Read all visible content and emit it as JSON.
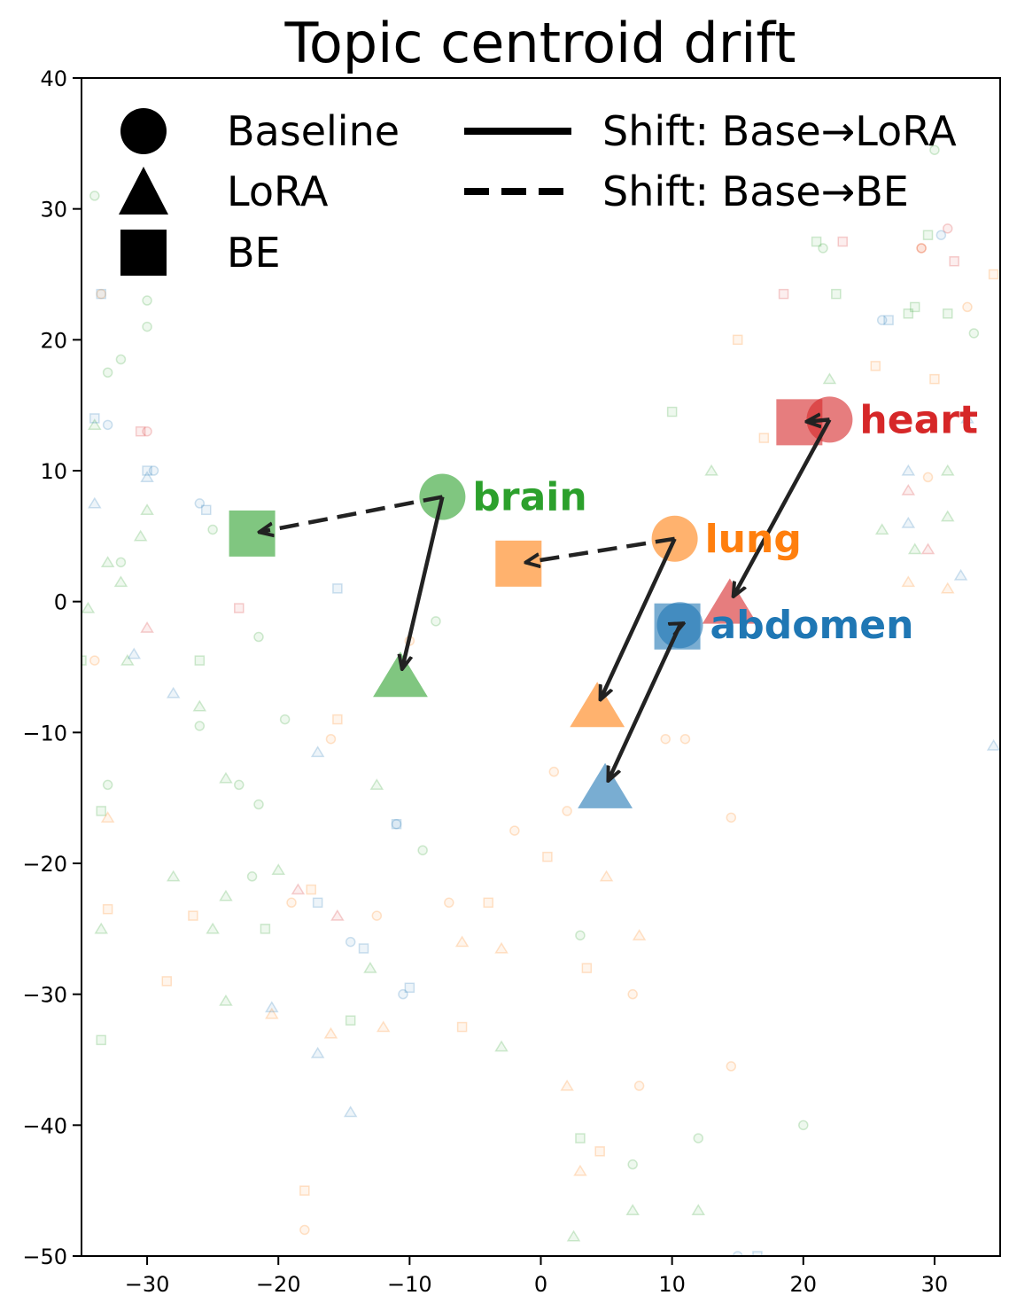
{
  "chart_data": {
    "type": "scatter",
    "title": "Topic centroid drift",
    "xlabel": "",
    "ylabel": "",
    "xlim": [
      -35,
      35
    ],
    "ylim": [
      -50,
      40
    ],
    "x_ticks": [
      -30,
      -20,
      -10,
      0,
      10,
      20,
      30
    ],
    "y_ticks": [
      40,
      30,
      20,
      10,
      0,
      -10,
      -20,
      -30,
      -40,
      -50
    ],
    "grid": false,
    "legend": {
      "placement": "top-left",
      "markers": [
        {
          "shape": "circle",
          "label": "Baseline"
        },
        {
          "shape": "triangle",
          "label": "LoRA"
        },
        {
          "shape": "square",
          "label": "BE"
        }
      ],
      "lines": [
        {
          "style": "solid",
          "label": "Shift: Base→LoRA"
        },
        {
          "style": "dashed",
          "label": "Shift: Base→BE"
        }
      ]
    },
    "topics": [
      {
        "name": "brain",
        "color": "#2ca02c",
        "baseline": [
          -7.5,
          8.0
        ],
        "lora": [
          -10.7,
          -5.7
        ],
        "be": [
          -22.0,
          5.2
        ]
      },
      {
        "name": "lung",
        "color": "#ff7f0e",
        "baseline": [
          10.2,
          4.8
        ],
        "lora": [
          4.3,
          -8.0
        ],
        "be": [
          -1.7,
          2.9
        ]
      },
      {
        "name": "heart",
        "color": "#d62728",
        "baseline": [
          22.0,
          13.9
        ],
        "lora": [
          14.4,
          -0.1
        ],
        "be": [
          19.7,
          13.7
        ]
      },
      {
        "name": "abdomen",
        "color": "#1f77b4",
        "baseline": [
          10.6,
          -1.8
        ],
        "lora": [
          4.9,
          -14.2
        ],
        "be": [
          10.4,
          -1.9
        ]
      }
    ],
    "background_points": [
      {
        "topic": "brain",
        "shape": "circle",
        "x": -34.0,
        "y": 31.0
      },
      {
        "topic": "brain",
        "shape": "circle",
        "x": -30.0,
        "y": 23.0
      },
      {
        "topic": "brain",
        "shape": "circle",
        "x": -30.0,
        "y": 21.0
      },
      {
        "topic": "brain",
        "shape": "circle",
        "x": -32.0,
        "y": 18.5
      },
      {
        "topic": "brain",
        "shape": "circle",
        "x": -33.0,
        "y": 17.5
      },
      {
        "topic": "brain",
        "shape": "circle",
        "x": -25.0,
        "y": 5.5
      },
      {
        "topic": "brain",
        "shape": "circle",
        "x": -32.0,
        "y": 3.0
      },
      {
        "topic": "brain",
        "shape": "circle",
        "x": -21.5,
        "y": -2.7
      },
      {
        "topic": "brain",
        "shape": "circle",
        "x": -26.0,
        "y": -9.5
      },
      {
        "topic": "brain",
        "shape": "circle",
        "x": -19.5,
        "y": -9.0
      },
      {
        "topic": "brain",
        "shape": "circle",
        "x": -33.0,
        "y": -14.0
      },
      {
        "topic": "brain",
        "shape": "circle",
        "x": -23.0,
        "y": -14.0
      },
      {
        "topic": "brain",
        "shape": "circle",
        "x": -21.5,
        "y": -15.5
      },
      {
        "topic": "brain",
        "shape": "circle",
        "x": -22.0,
        "y": -21.0
      },
      {
        "topic": "brain",
        "shape": "circle",
        "x": -9.0,
        "y": -19.0
      },
      {
        "topic": "brain",
        "shape": "circle",
        "x": 3.0,
        "y": -25.5
      },
      {
        "topic": "brain",
        "shape": "circle",
        "x": 12.0,
        "y": -41.0
      },
      {
        "topic": "brain",
        "shape": "circle",
        "x": 20.0,
        "y": -40.0
      },
      {
        "topic": "brain",
        "shape": "circle",
        "x": 21.5,
        "y": 27.0
      },
      {
        "topic": "brain",
        "shape": "circle",
        "x": 30.0,
        "y": 34.5
      },
      {
        "topic": "brain",
        "shape": "circle",
        "x": 33.0,
        "y": 20.5
      },
      {
        "topic": "brain",
        "shape": "circle",
        "x": -8.0,
        "y": -1.5
      },
      {
        "topic": "brain",
        "shape": "circle",
        "x": 7.0,
        "y": -43.0
      },
      {
        "topic": "brain",
        "shape": "triangle",
        "x": -34.0,
        "y": 13.5
      },
      {
        "topic": "brain",
        "shape": "triangle",
        "x": -30.0,
        "y": 7.0
      },
      {
        "topic": "brain",
        "shape": "triangle",
        "x": -30.5,
        "y": 5.0
      },
      {
        "topic": "brain",
        "shape": "triangle",
        "x": -33.0,
        "y": 3.0
      },
      {
        "topic": "brain",
        "shape": "triangle",
        "x": -32.0,
        "y": 1.5
      },
      {
        "topic": "brain",
        "shape": "triangle",
        "x": -34.5,
        "y": -0.5
      },
      {
        "topic": "brain",
        "shape": "triangle",
        "x": -31.5,
        "y": -4.5
      },
      {
        "topic": "brain",
        "shape": "triangle",
        "x": -26.0,
        "y": -8.0
      },
      {
        "topic": "brain",
        "shape": "triangle",
        "x": -24.0,
        "y": -13.5
      },
      {
        "topic": "brain",
        "shape": "triangle",
        "x": -12.5,
        "y": -14.0
      },
      {
        "topic": "brain",
        "shape": "triangle",
        "x": -28.0,
        "y": -21.0
      },
      {
        "topic": "brain",
        "shape": "triangle",
        "x": -20.0,
        "y": -20.5
      },
      {
        "topic": "brain",
        "shape": "triangle",
        "x": -24.0,
        "y": -22.5
      },
      {
        "topic": "brain",
        "shape": "triangle",
        "x": -25.0,
        "y": -25.0
      },
      {
        "topic": "brain",
        "shape": "triangle",
        "x": -33.5,
        "y": -25.0
      },
      {
        "topic": "brain",
        "shape": "triangle",
        "x": -24.0,
        "y": -30.5
      },
      {
        "topic": "brain",
        "shape": "triangle",
        "x": -13.0,
        "y": -28.0
      },
      {
        "topic": "brain",
        "shape": "triangle",
        "x": -3.0,
        "y": -34.0
      },
      {
        "topic": "brain",
        "shape": "triangle",
        "x": 2.5,
        "y": -48.5
      },
      {
        "topic": "brain",
        "shape": "triangle",
        "x": 7.0,
        "y": -46.5
      },
      {
        "topic": "brain",
        "shape": "triangle",
        "x": 12.0,
        "y": -46.5
      },
      {
        "topic": "brain",
        "shape": "triangle",
        "x": 13.0,
        "y": 10.0
      },
      {
        "topic": "brain",
        "shape": "triangle",
        "x": 22.0,
        "y": 17.0
      },
      {
        "topic": "brain",
        "shape": "triangle",
        "x": 26.0,
        "y": 5.5
      },
      {
        "topic": "brain",
        "shape": "triangle",
        "x": 28.5,
        "y": 4.0
      },
      {
        "topic": "brain",
        "shape": "triangle",
        "x": 31.0,
        "y": 6.5
      },
      {
        "topic": "brain",
        "shape": "triangle",
        "x": 31.0,
        "y": 10.0
      },
      {
        "topic": "brain",
        "shape": "square",
        "x": 10.0,
        "y": 14.5
      },
      {
        "topic": "brain",
        "shape": "square",
        "x": -35.0,
        "y": -4.5
      },
      {
        "topic": "brain",
        "shape": "square",
        "x": -26.0,
        "y": -4.5
      },
      {
        "topic": "brain",
        "shape": "square",
        "x": -33.5,
        "y": -16.0
      },
      {
        "topic": "brain",
        "shape": "square",
        "x": -21.0,
        "y": -25.0
      },
      {
        "topic": "brain",
        "shape": "square",
        "x": -33.5,
        "y": -33.5
      },
      {
        "topic": "brain",
        "shape": "square",
        "x": -14.5,
        "y": -32.0
      },
      {
        "topic": "brain",
        "shape": "square",
        "x": 3.0,
        "y": -41.0
      },
      {
        "topic": "brain",
        "shape": "square",
        "x": 21.0,
        "y": 27.5
      },
      {
        "topic": "brain",
        "shape": "square",
        "x": 22.5,
        "y": 23.5
      },
      {
        "topic": "brain",
        "shape": "square",
        "x": 28.5,
        "y": 22.5
      },
      {
        "topic": "brain",
        "shape": "square",
        "x": 29.5,
        "y": 28.0
      },
      {
        "topic": "brain",
        "shape": "square",
        "x": 28.0,
        "y": 22.0
      },
      {
        "topic": "brain",
        "shape": "square",
        "x": 31.0,
        "y": 22.0
      },
      {
        "topic": "lung",
        "shape": "circle",
        "x": -33.5,
        "y": 23.5
      },
      {
        "topic": "lung",
        "shape": "circle",
        "x": -34.0,
        "y": -4.5
      },
      {
        "topic": "lung",
        "shape": "circle",
        "x": -16.0,
        "y": -10.5
      },
      {
        "topic": "lung",
        "shape": "circle",
        "x": -10.0,
        "y": -3.0
      },
      {
        "topic": "lung",
        "shape": "circle",
        "x": -19.0,
        "y": -23.0
      },
      {
        "topic": "lung",
        "shape": "circle",
        "x": -12.5,
        "y": -24.0
      },
      {
        "topic": "lung",
        "shape": "circle",
        "x": -7.0,
        "y": -23.0
      },
      {
        "topic": "lung",
        "shape": "circle",
        "x": -2.0,
        "y": -17.5
      },
      {
        "topic": "lung",
        "shape": "circle",
        "x": 1.0,
        "y": -13.0
      },
      {
        "topic": "lung",
        "shape": "circle",
        "x": 2.0,
        "y": -16.0
      },
      {
        "topic": "lung",
        "shape": "circle",
        "x": 7.0,
        "y": -30.0
      },
      {
        "topic": "lung",
        "shape": "circle",
        "x": 7.5,
        "y": -37.0
      },
      {
        "topic": "lung",
        "shape": "circle",
        "x": 9.5,
        "y": -10.5
      },
      {
        "topic": "lung",
        "shape": "circle",
        "x": 11.0,
        "y": -10.5
      },
      {
        "topic": "lung",
        "shape": "circle",
        "x": 14.5,
        "y": -16.5
      },
      {
        "topic": "lung",
        "shape": "circle",
        "x": 14.5,
        "y": -35.5
      },
      {
        "topic": "lung",
        "shape": "circle",
        "x": -18.0,
        "y": -48.0
      },
      {
        "topic": "lung",
        "shape": "circle",
        "x": 32.5,
        "y": 22.5
      },
      {
        "topic": "lung",
        "shape": "circle",
        "x": 29.5,
        "y": 9.5
      },
      {
        "topic": "lung",
        "shape": "circle",
        "x": 29.0,
        "y": 27.0
      },
      {
        "topic": "lung",
        "shape": "triangle",
        "x": -33.0,
        "y": -16.5
      },
      {
        "topic": "lung",
        "shape": "triangle",
        "x": -20.5,
        "y": -31.5
      },
      {
        "topic": "lung",
        "shape": "triangle",
        "x": -16.0,
        "y": -33.0
      },
      {
        "topic": "lung",
        "shape": "triangle",
        "x": -12.0,
        "y": -32.5
      },
      {
        "topic": "lung",
        "shape": "triangle",
        "x": -6.0,
        "y": -26.0
      },
      {
        "topic": "lung",
        "shape": "triangle",
        "x": -3.0,
        "y": -26.5
      },
      {
        "topic": "lung",
        "shape": "triangle",
        "x": 5.0,
        "y": -21.0
      },
      {
        "topic": "lung",
        "shape": "triangle",
        "x": 7.5,
        "y": -25.5
      },
      {
        "topic": "lung",
        "shape": "triangle",
        "x": 2.0,
        "y": -37.0
      },
      {
        "topic": "lung",
        "shape": "triangle",
        "x": 3.0,
        "y": -43.5
      },
      {
        "topic": "lung",
        "shape": "triangle",
        "x": 28.0,
        "y": 1.5
      },
      {
        "topic": "lung",
        "shape": "triangle",
        "x": 31.0,
        "y": 1.0
      },
      {
        "topic": "lung",
        "shape": "square",
        "x": -33.0,
        "y": -23.5
      },
      {
        "topic": "lung",
        "shape": "square",
        "x": -26.5,
        "y": -24.0
      },
      {
        "topic": "lung",
        "shape": "square",
        "x": -28.5,
        "y": -29.0
      },
      {
        "topic": "lung",
        "shape": "square",
        "x": -18.0,
        "y": -45.0
      },
      {
        "topic": "lung",
        "shape": "square",
        "x": -17.5,
        "y": -22.0
      },
      {
        "topic": "lung",
        "shape": "square",
        "x": -15.5,
        "y": -9.0
      },
      {
        "topic": "lung",
        "shape": "square",
        "x": -6.0,
        "y": -32.5
      },
      {
        "topic": "lung",
        "shape": "square",
        "x": -4.0,
        "y": -23.0
      },
      {
        "topic": "lung",
        "shape": "square",
        "x": 0.5,
        "y": -19.5
      },
      {
        "topic": "lung",
        "shape": "square",
        "x": 3.5,
        "y": -28.0
      },
      {
        "topic": "lung",
        "shape": "square",
        "x": 4.5,
        "y": -42.0
      },
      {
        "topic": "lung",
        "shape": "square",
        "x": 15.0,
        "y": 20.0
      },
      {
        "topic": "lung",
        "shape": "square",
        "x": 17.0,
        "y": 12.5
      },
      {
        "topic": "lung",
        "shape": "square",
        "x": 25.5,
        "y": 18.0
      },
      {
        "topic": "lung",
        "shape": "square",
        "x": 30.0,
        "y": 17.0
      },
      {
        "topic": "lung",
        "shape": "square",
        "x": 34.5,
        "y": 25.0
      },
      {
        "topic": "heart",
        "shape": "circle",
        "x": -30.0,
        "y": 13.0
      },
      {
        "topic": "heart",
        "shape": "circle",
        "x": 31.0,
        "y": 28.5
      },
      {
        "topic": "heart",
        "shape": "circle",
        "x": 29.0,
        "y": 27.0
      },
      {
        "topic": "heart",
        "shape": "square",
        "x": -30.5,
        "y": 13.0
      },
      {
        "topic": "heart",
        "shape": "square",
        "x": -23.0,
        "y": -0.5
      },
      {
        "topic": "heart",
        "shape": "square",
        "x": 18.5,
        "y": 23.5
      },
      {
        "topic": "heart",
        "shape": "square",
        "x": 23.0,
        "y": 27.5
      },
      {
        "topic": "heart",
        "shape": "square",
        "x": 31.5,
        "y": 26.0
      },
      {
        "topic": "heart",
        "shape": "triangle",
        "x": -30.0,
        "y": -2.0
      },
      {
        "topic": "heart",
        "shape": "triangle",
        "x": 28.0,
        "y": 8.5
      },
      {
        "topic": "heart",
        "shape": "triangle",
        "x": 29.5,
        "y": 4.0
      },
      {
        "topic": "heart",
        "shape": "triangle",
        "x": -18.5,
        "y": -22.0
      },
      {
        "topic": "heart",
        "shape": "triangle",
        "x": -15.5,
        "y": -24.0
      },
      {
        "topic": "abdomen",
        "shape": "circle",
        "x": -33.0,
        "y": 13.5
      },
      {
        "topic": "abdomen",
        "shape": "circle",
        "x": -29.5,
        "y": 10.0
      },
      {
        "topic": "abdomen",
        "shape": "circle",
        "x": -26.0,
        "y": 7.5
      },
      {
        "topic": "abdomen",
        "shape": "circle",
        "x": -11.0,
        "y": -17.0
      },
      {
        "topic": "abdomen",
        "shape": "circle",
        "x": -14.5,
        "y": -26.0
      },
      {
        "topic": "abdomen",
        "shape": "circle",
        "x": -10.5,
        "y": -30.0
      },
      {
        "topic": "abdomen",
        "shape": "circle",
        "x": 15.0,
        "y": -50.0
      },
      {
        "topic": "abdomen",
        "shape": "circle",
        "x": 30.5,
        "y": 28.0
      },
      {
        "topic": "abdomen",
        "shape": "circle",
        "x": 26.0,
        "y": 21.5
      },
      {
        "topic": "abdomen",
        "shape": "square",
        "x": -34.0,
        "y": 14.0
      },
      {
        "topic": "abdomen",
        "shape": "square",
        "x": -30.0,
        "y": 10.0
      },
      {
        "topic": "abdomen",
        "shape": "square",
        "x": -25.5,
        "y": 7.0
      },
      {
        "topic": "abdomen",
        "shape": "square",
        "x": -33.5,
        "y": 23.5
      },
      {
        "topic": "abdomen",
        "shape": "square",
        "x": -15.5,
        "y": 1.0
      },
      {
        "topic": "abdomen",
        "shape": "square",
        "x": -11.0,
        "y": -17.0
      },
      {
        "topic": "abdomen",
        "shape": "square",
        "x": -17.0,
        "y": -23.0
      },
      {
        "topic": "abdomen",
        "shape": "square",
        "x": -13.5,
        "y": -26.5
      },
      {
        "topic": "abdomen",
        "shape": "square",
        "x": -10.0,
        "y": -29.5
      },
      {
        "topic": "abdomen",
        "shape": "square",
        "x": 16.5,
        "y": -50.0
      },
      {
        "topic": "abdomen",
        "shape": "square",
        "x": 26.5,
        "y": 21.5
      },
      {
        "topic": "abdomen",
        "shape": "triangle",
        "x": -34.0,
        "y": 7.5
      },
      {
        "topic": "abdomen",
        "shape": "triangle",
        "x": -30.0,
        "y": 9.5
      },
      {
        "topic": "abdomen",
        "shape": "triangle",
        "x": -31.0,
        "y": -4.0
      },
      {
        "topic": "abdomen",
        "shape": "triangle",
        "x": -28.0,
        "y": -7.0
      },
      {
        "topic": "abdomen",
        "shape": "triangle",
        "x": -17.0,
        "y": -11.5
      },
      {
        "topic": "abdomen",
        "shape": "triangle",
        "x": -17.0,
        "y": -34.5
      },
      {
        "topic": "abdomen",
        "shape": "triangle",
        "x": -14.5,
        "y": -39.0
      },
      {
        "topic": "abdomen",
        "shape": "triangle",
        "x": -20.5,
        "y": -31.0
      },
      {
        "topic": "abdomen",
        "shape": "triangle",
        "x": 28.0,
        "y": 10.0
      },
      {
        "topic": "abdomen",
        "shape": "triangle",
        "x": 32.5,
        "y": 14.0
      },
      {
        "topic": "abdomen",
        "shape": "triangle",
        "x": 32.0,
        "y": 2.0
      },
      {
        "topic": "abdomen",
        "shape": "triangle",
        "x": 28.0,
        "y": 6.0
      },
      {
        "topic": "abdomen",
        "shape": "triangle",
        "x": 34.5,
        "y": -11.0
      }
    ]
  }
}
